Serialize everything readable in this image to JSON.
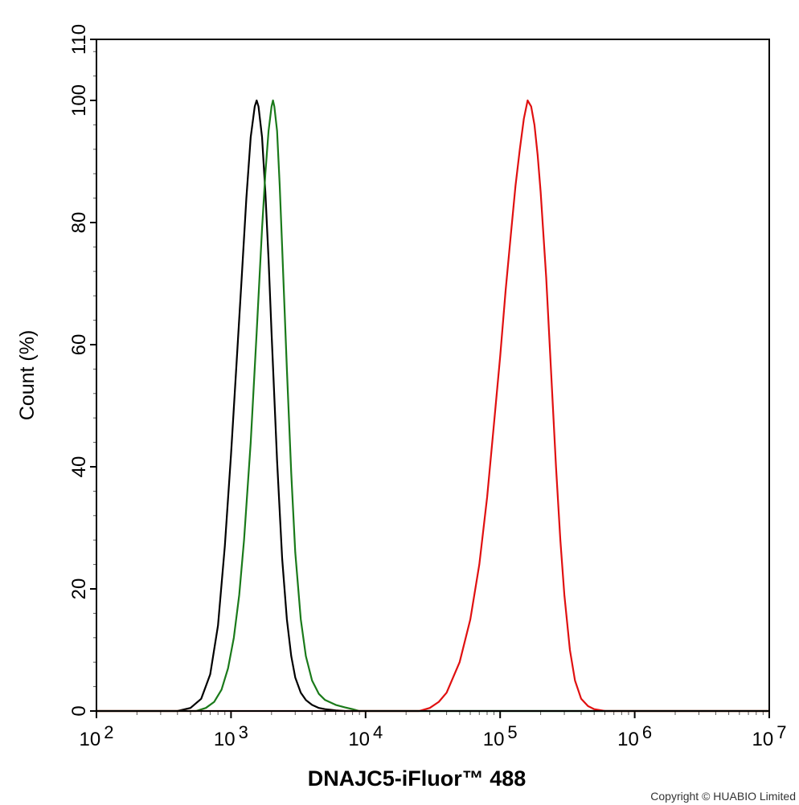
{
  "chart_data": {
    "type": "line",
    "x_scale": "log",
    "xlim": [
      100,
      10000000
    ],
    "ylim": [
      0,
      110
    ],
    "xlabel": "DNAJC5-iFluor™ 488",
    "ylabel": "Count  (%)",
    "x_ticks": [
      {
        "value": 100,
        "base": "10",
        "exp": "2"
      },
      {
        "value": 1000,
        "base": "10",
        "exp": "3"
      },
      {
        "value": 10000,
        "base": "10",
        "exp": "4"
      },
      {
        "value": 100000,
        "base": "10",
        "exp": "5"
      },
      {
        "value": 1000000,
        "base": "10",
        "exp": "6"
      },
      {
        "value": 10000000,
        "base": "10",
        "exp": "7"
      }
    ],
    "y_ticks": [
      0,
      20,
      40,
      60,
      80,
      100,
      110
    ],
    "grid": false,
    "series": [
      {
        "color": "#000000",
        "x": [
          400,
          500,
          600,
          700,
          800,
          900,
          1000,
          1100,
          1200,
          1300,
          1400,
          1500,
          1550,
          1600,
          1700,
          1800,
          1900,
          2000,
          2200,
          2400,
          2600,
          2800,
          3000,
          3300,
          3600,
          4000,
          4500,
          5000,
          5500,
          6000,
          7000
        ],
        "values": [
          0,
          0.5,
          2,
          6,
          14,
          27,
          42,
          57,
          71,
          84,
          94,
          99,
          100,
          99,
          94,
          85,
          74,
          62,
          41,
          25,
          15,
          9,
          5.5,
          3,
          1.8,
          1,
          0.5,
          0.3,
          0.2,
          0.1,
          0
        ]
      },
      {
        "color": "#1a7a1a",
        "x": [
          550,
          650,
          750,
          850,
          950,
          1050,
          1150,
          1250,
          1400,
          1550,
          1700,
          1800,
          1900,
          2000,
          2050,
          2100,
          2200,
          2300,
          2400,
          2600,
          2800,
          3000,
          3300,
          3600,
          4000,
          4500,
          5000,
          6000,
          7000,
          8000,
          9000
        ],
        "values": [
          0,
          0.5,
          1.5,
          3.5,
          7,
          12,
          19,
          28,
          44,
          62,
          79,
          88,
          95,
          99,
          100,
          99,
          95,
          86,
          76,
          56,
          39,
          26,
          15,
          9,
          5,
          2.8,
          1.8,
          1,
          0.6,
          0.3,
          0
        ]
      },
      {
        "color": "#e01010",
        "x": [
          25000,
          30000,
          35000,
          40000,
          50000,
          60000,
          70000,
          80000,
          90000,
          100000,
          110000,
          120000,
          130000,
          140000,
          150000,
          160000,
          170000,
          180000,
          190000,
          200000,
          220000,
          240000,
          260000,
          280000,
          300000,
          330000,
          360000,
          400000,
          450000,
          500000,
          600000
        ],
        "values": [
          0,
          0.5,
          1.5,
          3,
          8,
          15,
          24,
          35,
          47,
          58,
          69,
          78,
          86,
          92,
          97,
          100,
          99,
          96,
          91,
          85,
          71,
          55,
          40,
          28,
          19,
          10,
          5,
          2,
          0.8,
          0.3,
          0
        ]
      }
    ]
  },
  "copyright": "Copyright © HUABIO Limited"
}
